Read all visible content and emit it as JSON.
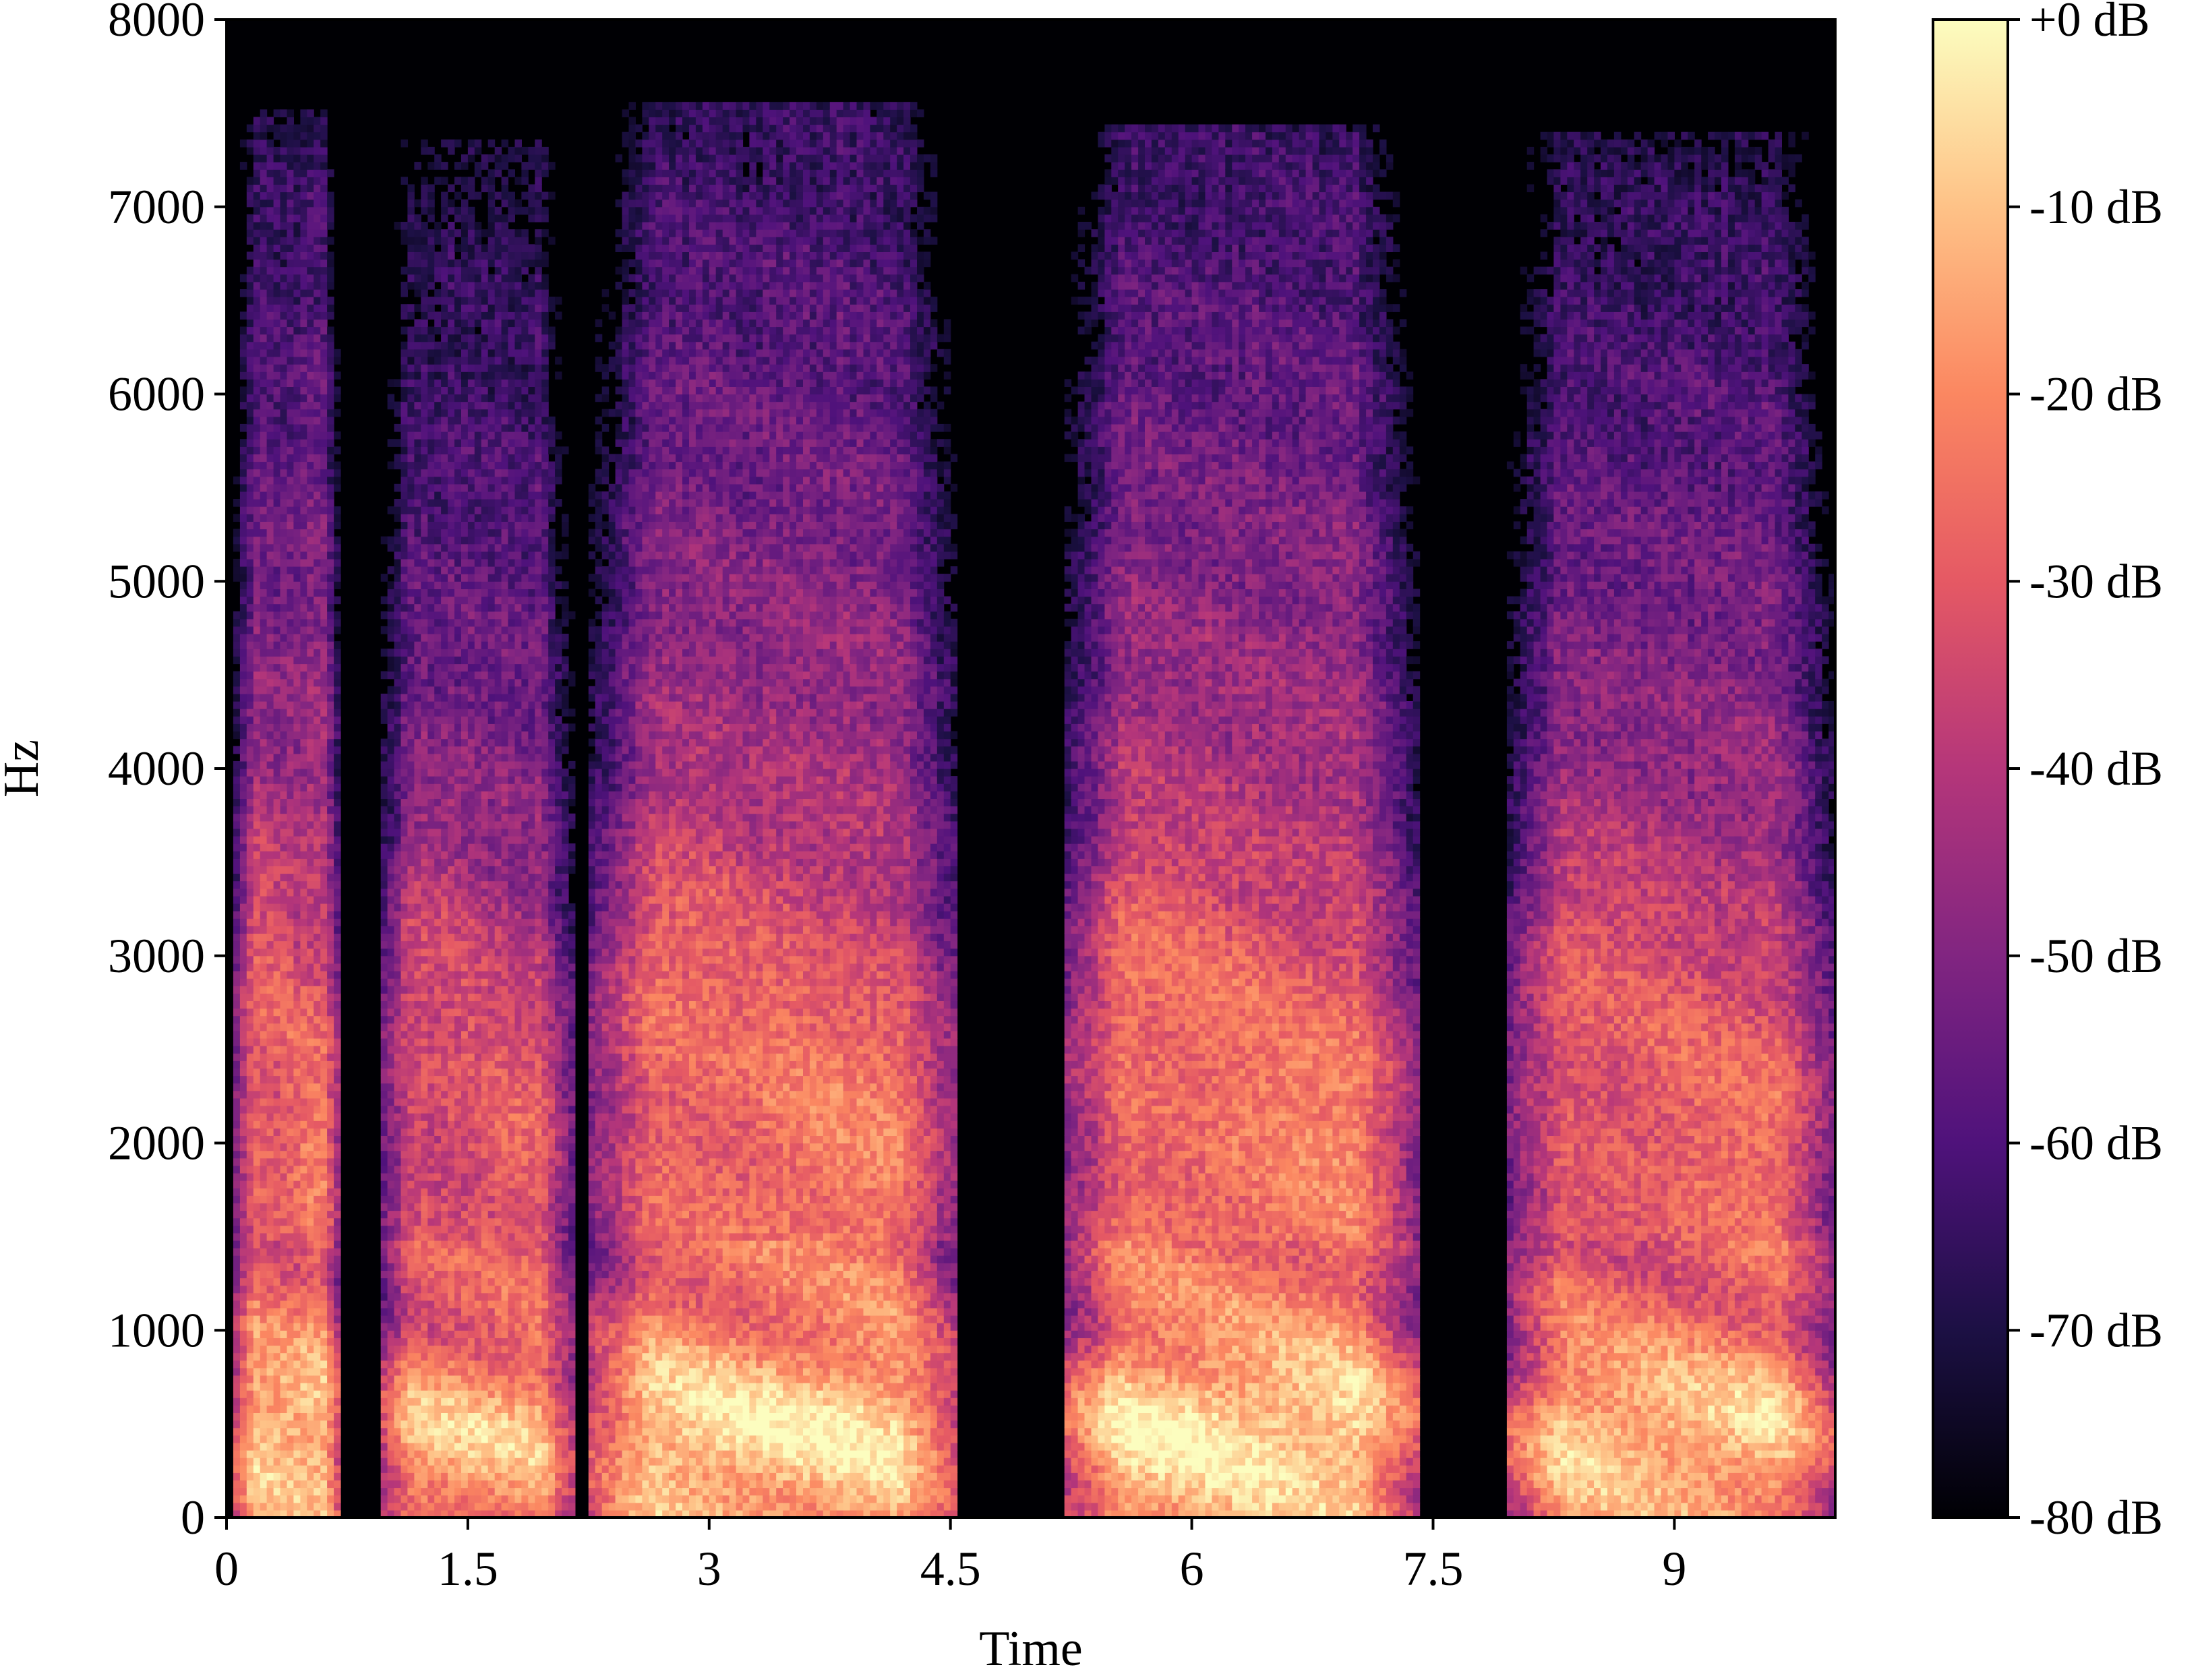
{
  "chart_data": {
    "type": "heatmap",
    "subtype": "spectrogram",
    "colormap": "magma",
    "title": "",
    "xlabel": "Time",
    "ylabel": "Hz",
    "xlim": [
      0,
      10.0
    ],
    "ylim": [
      0,
      8000
    ],
    "x_ticks": [
      0,
      1.5,
      3,
      4.5,
      6,
      7.5,
      9
    ],
    "x_tick_labels": [
      "0",
      "1.5",
      "3",
      "4.5",
      "6",
      "7.5",
      "9"
    ],
    "y_ticks": [
      0,
      1000,
      2000,
      3000,
      4000,
      5000,
      6000,
      7000,
      8000
    ],
    "y_tick_labels": [
      "0",
      "1000",
      "2000",
      "3000",
      "4000",
      "5000",
      "6000",
      "7000",
      "8000"
    ],
    "colorbar": {
      "range": [
        -80,
        0
      ],
      "ticks": [
        0,
        -10,
        -20,
        -30,
        -40,
        -50,
        -60,
        -70,
        -80
      ],
      "tick_labels": [
        "+0 dB",
        "-10 dB",
        "-20 dB",
        "-30 dB",
        "-40 dB",
        "-50 dB",
        "-60 dB",
        "-70 dB",
        "-80 dB"
      ]
    },
    "grid": false,
    "segments": [
      {
        "start": 0.05,
        "end": 0.72,
        "peak_db": -8,
        "max_hz": 7500
      },
      {
        "start": 0.95,
        "end": 2.15,
        "peak_db": -12,
        "max_hz": 7350
      },
      {
        "start": 2.25,
        "end": 4.55,
        "peak_db": -6,
        "max_hz": 7550
      },
      {
        "start": 5.2,
        "end": 7.4,
        "peak_db": -5,
        "max_hz": 7450
      },
      {
        "start": 7.95,
        "end": 10.0,
        "peak_db": -9,
        "max_hz": 7400
      }
    ]
  }
}
